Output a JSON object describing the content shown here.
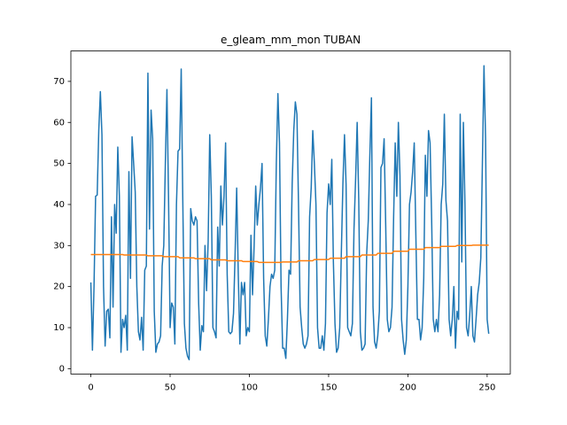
{
  "chart_data": {
    "type": "line",
    "title": "e_gleam_mm_mon TUBAN",
    "x": [
      0,
      1,
      2,
      3,
      4,
      5,
      6,
      7,
      8,
      9,
      10,
      11,
      12,
      13,
      14,
      15,
      16,
      17,
      18,
      19,
      20,
      21,
      22,
      23,
      24,
      25,
      26,
      27,
      28,
      29,
      30,
      31,
      32,
      33,
      34,
      35,
      36,
      37,
      38,
      39,
      40,
      41,
      42,
      43,
      44,
      45,
      46,
      47,
      48,
      49,
      50,
      51,
      52,
      53,
      54,
      55,
      56,
      57,
      58,
      59,
      60,
      61,
      62,
      63,
      64,
      65,
      66,
      67,
      68,
      69,
      70,
      71,
      72,
      73,
      74,
      75,
      76,
      77,
      78,
      79,
      80,
      81,
      82,
      83,
      84,
      85,
      86,
      87,
      88,
      89,
      90,
      91,
      92,
      93,
      94,
      95,
      96,
      97,
      98,
      99,
      100,
      101,
      102,
      103,
      104,
      105,
      106,
      107,
      108,
      109,
      110,
      111,
      112,
      113,
      114,
      115,
      116,
      117,
      118,
      119,
      120,
      121,
      122,
      123,
      124,
      125,
      126,
      127,
      128,
      129,
      130,
      131,
      132,
      133,
      134,
      135,
      136,
      137,
      138,
      139,
      140,
      141,
      142,
      143,
      144,
      145,
      146,
      147,
      148,
      149,
      150,
      151,
      152,
      153,
      154,
      155,
      156,
      157,
      158,
      159,
      160,
      161,
      162,
      163,
      164,
      165,
      166,
      167,
      168,
      169,
      170,
      171,
      172,
      173,
      174,
      175,
      176,
      177,
      178,
      179,
      180,
      181,
      182,
      183,
      184,
      185,
      186,
      187,
      188,
      189,
      190,
      191,
      192,
      193,
      194,
      195,
      196,
      197,
      198,
      199,
      200,
      201,
      202,
      203,
      204,
      205,
      206,
      207,
      208,
      209,
      210,
      211,
      212,
      213,
      214,
      215,
      216,
      217,
      218,
      219,
      220,
      221,
      222,
      223,
      224,
      225,
      226,
      227,
      228,
      229,
      230,
      231,
      232,
      233,
      234,
      235,
      236,
      237,
      238,
      239,
      240,
      241,
      242,
      243,
      244,
      245,
      246,
      247,
      248,
      249,
      250,
      251
    ],
    "series": [
      {
        "color": "#1f77b4",
        "values": [
          21,
          4.5,
          20,
          42,
          42.3,
          58,
          67.5,
          57,
          20,
          5.5,
          14,
          14.5,
          7.5,
          37,
          15,
          40,
          33,
          54,
          42,
          4,
          12,
          10,
          13,
          4.5,
          48,
          22,
          56.5,
          50,
          43,
          20,
          9,
          7,
          12.5,
          4.5,
          24,
          25,
          72,
          34,
          63,
          56,
          14,
          4,
          6,
          6.5,
          8,
          25,
          30,
          50,
          68,
          42,
          10,
          16,
          15,
          6,
          40,
          53,
          53.5,
          73,
          41,
          11,
          5,
          3,
          2.2,
          39,
          36,
          35,
          37,
          36,
          16,
          4.5,
          10.5,
          9,
          30,
          19,
          31,
          57,
          42,
          10,
          9,
          7.5,
          34.5,
          25,
          44.5,
          35,
          42,
          55,
          23,
          9,
          8.5,
          9,
          13.5,
          28,
          44,
          23,
          6,
          21,
          18,
          21,
          8,
          10,
          9,
          32.5,
          18,
          30,
          44.5,
          35,
          40,
          44,
          50,
          22,
          8,
          5.5,
          12,
          20,
          23,
          22,
          24,
          50,
          67,
          55,
          20,
          5,
          5,
          2.5,
          12,
          24,
          23,
          45,
          58,
          65,
          62,
          40,
          15,
          10,
          6,
          5,
          6,
          8,
          37,
          44,
          58,
          50,
          40,
          10,
          5,
          5,
          8,
          4.5,
          11,
          38,
          45,
          40,
          51,
          26,
          11,
          4,
          5,
          10,
          28,
          45,
          57,
          45,
          10,
          9,
          8,
          11,
          34,
          46,
          60,
          41,
          9,
          4.5,
          5,
          6,
          28,
          36,
          52,
          66,
          15,
          6.5,
          5,
          8,
          14,
          49,
          50,
          56,
          35,
          12,
          9,
          10,
          15,
          37,
          55,
          42,
          60,
          47,
          12,
          7,
          3.5,
          7,
          20,
          40,
          43,
          48,
          55,
          33,
          12,
          12,
          7,
          10,
          22,
          52,
          42,
          58,
          55,
          36,
          12,
          9,
          12,
          9,
          18,
          40,
          45,
          62,
          41,
          36,
          12,
          8,
          12,
          20,
          5,
          14,
          12,
          62,
          26,
          60,
          40,
          10,
          8,
          13,
          20,
          8,
          6.5,
          12,
          18,
          21,
          27,
          50,
          73.8,
          56,
          12,
          8.5
        ]
      },
      {
        "color": "#ff7f0e",
        "values": [
          27.8,
          27.8,
          27.8,
          27.8,
          27.8,
          27.8,
          27.8,
          27.8,
          27.8,
          27.8,
          27.8,
          27.8,
          27.8,
          27.8,
          27.8,
          27.8,
          27.8,
          27.8,
          27.8,
          27.8,
          27.8,
          27.7,
          27.7,
          27.7,
          27.7,
          27.7,
          27.7,
          27.7,
          27.7,
          27.7,
          27.7,
          27.7,
          27.7,
          27.7,
          27.7,
          27.7,
          27.5,
          27.5,
          27.5,
          27.5,
          27.5,
          27.5,
          27.5,
          27.5,
          27.5,
          27.5,
          27.3,
          27.3,
          27.3,
          27.3,
          27.3,
          27.3,
          27.3,
          27.3,
          27.3,
          27.3,
          27.0,
          27.0,
          27.0,
          27.0,
          27.0,
          27.0,
          27.0,
          27.0,
          27.0,
          27.0,
          26.8,
          26.8,
          26.8,
          26.8,
          26.8,
          26.8,
          26.8,
          26.8,
          26.8,
          26.8,
          26.5,
          26.5,
          26.5,
          26.5,
          26.5,
          26.5,
          26.5,
          26.5,
          26.5,
          26.5,
          26.3,
          26.3,
          26.3,
          26.3,
          26.3,
          26.3,
          26.3,
          26.3,
          26.3,
          26.3,
          26.1,
          26.1,
          26.1,
          26.1,
          26.1,
          26.1,
          26.1,
          26.1,
          26.1,
          26.1,
          25.9,
          25.9,
          25.9,
          25.9,
          25.9,
          25.9,
          25.9,
          25.9,
          25.9,
          25.9,
          25.9,
          25.9,
          25.9,
          25.9,
          25.9,
          26.0,
          26.0,
          26.0,
          26.0,
          26.0,
          26.0,
          26.0,
          26.0,
          26.0,
          26.0,
          26.3,
          26.3,
          26.3,
          26.3,
          26.3,
          26.3,
          26.3,
          26.3,
          26.3,
          26.3,
          26.6,
          26.6,
          26.6,
          26.6,
          26.6,
          26.6,
          26.6,
          26.6,
          26.6,
          26.6,
          26.9,
          26.9,
          26.9,
          26.9,
          26.9,
          26.9,
          26.9,
          26.9,
          26.9,
          26.9,
          27.3,
          27.3,
          27.3,
          27.3,
          27.3,
          27.3,
          27.3,
          27.3,
          27.3,
          27.3,
          27.7,
          27.7,
          27.7,
          27.7,
          27.7,
          27.7,
          27.7,
          27.7,
          27.7,
          27.7,
          28.1,
          28.1,
          28.1,
          28.1,
          28.1,
          28.1,
          28.1,
          28.1,
          28.1,
          28.1,
          28.6,
          28.6,
          28.6,
          28.6,
          28.6,
          28.6,
          28.6,
          28.6,
          28.6,
          28.6,
          29.1,
          29.1,
          29.1,
          29.1,
          29.1,
          29.1,
          29.1,
          29.1,
          29.1,
          29.1,
          29.5,
          29.5,
          29.5,
          29.5,
          29.5,
          29.5,
          29.5,
          29.5,
          29.5,
          29.5,
          29.8,
          29.8,
          29.8,
          29.8,
          29.8,
          29.8,
          29.8,
          29.8,
          29.8,
          29.8,
          30.0,
          30.0,
          30.0,
          30.0,
          30.0,
          30.0,
          30.0,
          30.0,
          30.0,
          30.0,
          30.1,
          30.1,
          30.1,
          30.1,
          30.1,
          30.1,
          30.1,
          30.1,
          30.1,
          30.1,
          30.1
        ]
      }
    ],
    "xlim": [
      -12.6,
      264.6
    ],
    "xticks": [
      0,
      50,
      100,
      150,
      200,
      250
    ],
    "ylim": [
      -1.3,
      77.4
    ],
    "yticks": [
      0,
      10,
      20,
      30,
      40,
      50,
      60,
      70
    ]
  }
}
